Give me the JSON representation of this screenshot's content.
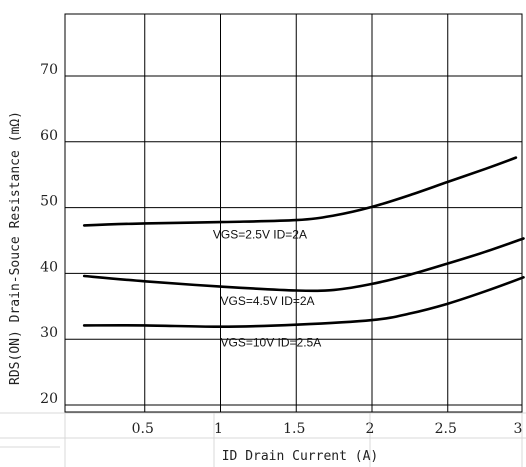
{
  "chart_data": {
    "type": "line",
    "title": "",
    "xlabel": "ID Drain Current (A)",
    "ylabel": "RDS(ON) Drain-Souce Resistance (mΩ)",
    "xlim": [
      0,
      3
    ],
    "ylim": [
      18,
      80
    ],
    "x_ticks": [
      "0.5",
      "1",
      "1.5",
      "2",
      "2.5",
      "3"
    ],
    "y_ticks": [
      "20",
      "30",
      "40",
      "50",
      "60",
      "70"
    ],
    "grid": true,
    "legend": "none",
    "series": [
      {
        "name": "VGS=2.5V ID=2A",
        "x": [
          0.1,
          0.5,
          1.0,
          1.5,
          1.75,
          2.0,
          2.25,
          2.5,
          2.75,
          2.95
        ],
        "y": [
          47.3,
          47.6,
          47.8,
          48.1,
          48.8,
          50.1,
          51.9,
          53.9,
          55.9,
          57.6
        ]
      },
      {
        "name": "VGS=4.5V ID=2A",
        "x": [
          0.1,
          0.5,
          1.0,
          1.5,
          1.75,
          2.0,
          2.25,
          2.5,
          2.75,
          3.0
        ],
        "y": [
          39.6,
          38.8,
          38.0,
          37.4,
          37.5,
          38.4,
          39.8,
          41.5,
          43.3,
          45.3
        ]
      },
      {
        "name": "VGS=10V ID=2.5A",
        "x": [
          0.1,
          0.5,
          1.0,
          1.5,
          2.0,
          2.25,
          2.5,
          2.75,
          3.0
        ],
        "y": [
          32.1,
          32.1,
          31.9,
          32.2,
          32.9,
          33.9,
          35.4,
          37.3,
          39.4
        ]
      }
    ]
  }
}
